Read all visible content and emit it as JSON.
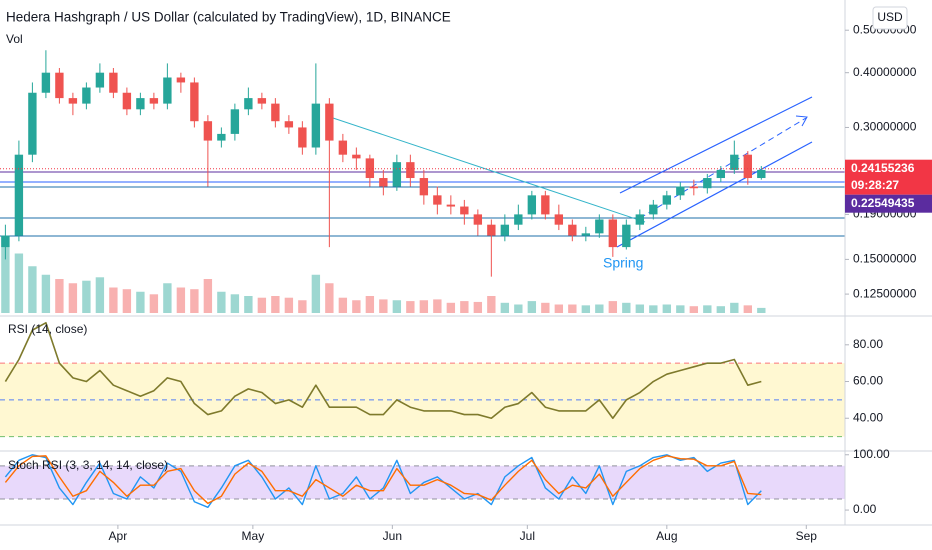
{
  "chart_data": [
    {
      "type": "candlestick",
      "title": "Hedera Hashgraph / US Dollar (calculated by TradingView), 1D, BINANCE",
      "subtitle": "Vol",
      "currency": "USD",
      "annotation": "Spring",
      "log_scale": true,
      "grid": false,
      "up_color": "#26a69a",
      "down_color": "#ef5350",
      "x": [
        -25,
        -22,
        -19,
        -16,
        -13,
        -10,
        -7,
        -4,
        -1,
        2,
        5,
        8,
        11,
        14,
        17,
        20,
        23,
        26,
        29,
        32,
        35,
        38,
        41,
        44,
        47,
        50,
        53,
        56,
        59,
        62,
        65,
        68,
        71,
        74,
        77,
        80,
        83,
        86,
        89,
        92,
        95,
        98,
        101,
        104,
        107,
        110,
        113,
        116,
        119,
        122,
        125,
        128,
        131,
        134,
        137,
        140,
        143
      ],
      "xlim": [
        -26.2,
        161.6
      ],
      "ylim": [
        0.112,
        0.586
      ],
      "yticks": [
        {
          "value": 0.5,
          "label": "0.50000000"
        },
        {
          "value": 0.4,
          "label": "0.40000000"
        },
        {
          "value": 0.3,
          "label": "0.30000000"
        },
        {
          "value": 0.19,
          "label": "0.19000000"
        },
        {
          "value": 0.15,
          "label": "0.15000000"
        },
        {
          "value": 0.125,
          "label": "0.12500000"
        }
      ],
      "open": [
        0.16,
        0.17,
        0.26,
        0.36,
        0.4,
        0.35,
        0.34,
        0.37,
        0.4,
        0.36,
        0.33,
        0.35,
        0.34,
        0.39,
        0.38,
        0.31,
        0.28,
        0.29,
        0.33,
        0.35,
        0.34,
        0.31,
        0.3,
        0.27,
        0.34,
        0.28,
        0.26,
        0.255,
        0.23,
        0.22,
        0.25,
        0.23,
        0.21,
        0.2,
        0.198,
        0.19,
        0.18,
        0.17,
        0.18,
        0.19,
        0.21,
        0.19,
        0.18,
        0.17,
        0.172,
        0.185,
        0.16,
        0.18,
        0.19,
        0.2,
        0.21,
        0.22,
        0.218,
        0.23,
        0.24,
        0.26,
        0.23
      ],
      "high": [
        0.18,
        0.28,
        0.38,
        0.45,
        0.41,
        0.36,
        0.38,
        0.42,
        0.41,
        0.37,
        0.36,
        0.36,
        0.42,
        0.4,
        0.39,
        0.32,
        0.3,
        0.34,
        0.37,
        0.36,
        0.35,
        0.32,
        0.31,
        0.42,
        0.35,
        0.29,
        0.27,
        0.26,
        0.24,
        0.26,
        0.26,
        0.24,
        0.22,
        0.21,
        0.205,
        0.195,
        0.185,
        0.19,
        0.2,
        0.215,
        0.215,
        0.2,
        0.185,
        0.178,
        0.19,
        0.19,
        0.185,
        0.195,
        0.205,
        0.215,
        0.225,
        0.228,
        0.235,
        0.245,
        0.28,
        0.265,
        0.245
      ],
      "low": [
        0.15,
        0.165,
        0.25,
        0.35,
        0.34,
        0.32,
        0.33,
        0.36,
        0.35,
        0.32,
        0.32,
        0.33,
        0.33,
        0.36,
        0.3,
        0.22,
        0.27,
        0.28,
        0.32,
        0.33,
        0.3,
        0.29,
        0.26,
        0.26,
        0.16,
        0.25,
        0.24,
        0.22,
        0.21,
        0.215,
        0.22,
        0.2,
        0.19,
        0.19,
        0.18,
        0.17,
        0.137,
        0.165,
        0.175,
        0.185,
        0.185,
        0.175,
        0.165,
        0.165,
        0.168,
        0.152,
        0.158,
        0.175,
        0.185,
        0.195,
        0.205,
        0.21,
        0.212,
        0.225,
        0.235,
        0.222,
        0.228
      ],
      "close": [
        0.17,
        0.26,
        0.36,
        0.4,
        0.35,
        0.34,
        0.37,
        0.4,
        0.36,
        0.33,
        0.35,
        0.34,
        0.39,
        0.38,
        0.31,
        0.28,
        0.29,
        0.33,
        0.35,
        0.34,
        0.31,
        0.3,
        0.27,
        0.34,
        0.28,
        0.26,
        0.255,
        0.23,
        0.22,
        0.25,
        0.23,
        0.21,
        0.2,
        0.198,
        0.19,
        0.18,
        0.17,
        0.18,
        0.19,
        0.21,
        0.19,
        0.18,
        0.17,
        0.172,
        0.185,
        0.16,
        0.18,
        0.19,
        0.2,
        0.21,
        0.22,
        0.218,
        0.23,
        0.24,
        0.26,
        0.23,
        0.24
      ],
      "volume": [
        90,
        70,
        55,
        45,
        40,
        35,
        38,
        42,
        30,
        28,
        25,
        22,
        35,
        30,
        28,
        40,
        25,
        22,
        20,
        18,
        20,
        18,
        15,
        45,
        35,
        18,
        15,
        20,
        16,
        15,
        14,
        15,
        16,
        12,
        14,
        13,
        20,
        12,
        10,
        14,
        12,
        10,
        10,
        9,
        10,
        14,
        12,
        10,
        9,
        10,
        9,
        8,
        9,
        8,
        12,
        9,
        6
      ],
      "y2lim": [
        0,
        100
      ],
      "last_price": 0.24155236,
      "last_price_color": "#f23645",
      "countdown": "09:28:27",
      "level_price": 0.22549435,
      "level_price_color": "#5b2c9f"
    },
    {
      "type": "line",
      "title": "RSI (14, close)",
      "color": "#7e7a2c",
      "x": [
        -25,
        -22,
        -19,
        -16,
        -13,
        -10,
        -7,
        -4,
        -1,
        2,
        5,
        8,
        11,
        14,
        17,
        20,
        23,
        26,
        29,
        32,
        35,
        38,
        41,
        44,
        47,
        50,
        53,
        56,
        59,
        62,
        65,
        68,
        71,
        74,
        77,
        80,
        83,
        86,
        89,
        92,
        95,
        98,
        101,
        104,
        107,
        110,
        113,
        116,
        119,
        122,
        125,
        128,
        131,
        134,
        137,
        140,
        143
      ],
      "values": [
        60,
        72,
        88,
        92,
        70,
        62,
        60,
        66,
        58,
        55,
        52,
        55,
        62,
        60,
        48,
        42,
        44,
        52,
        56,
        54,
        48,
        50,
        46,
        58,
        46,
        46,
        46,
        42,
        42,
        50,
        46,
        44,
        44,
        44,
        42,
        42,
        40,
        46,
        48,
        54,
        46,
        44,
        44,
        44,
        50,
        40,
        50,
        54,
        60,
        64,
        66,
        68,
        70,
        70,
        72,
        58,
        60
      ],
      "xlim": [
        -26.2,
        161.6
      ],
      "ylim": [
        22.7,
        94.6
      ],
      "yticks": [
        {
          "value": 80,
          "label": "80.00"
        },
        {
          "value": 60,
          "label": "60.00"
        },
        {
          "value": 40,
          "label": "40.00"
        }
      ],
      "band": [
        30,
        70
      ],
      "band_color": "#fff8d2",
      "levels": [
        70,
        50,
        30
      ],
      "level_colors": [
        "#f7525f",
        "#2962ff",
        "#4caf50"
      ]
    },
    {
      "type": "line",
      "title": "Stoch RSI (3, 3, 14, 14, close)",
      "x": [
        -25,
        -22,
        -19,
        -16,
        -13,
        -10,
        -7,
        -4,
        -1,
        2,
        5,
        8,
        11,
        14,
        17,
        20,
        23,
        26,
        29,
        32,
        35,
        38,
        41,
        44,
        47,
        50,
        53,
        56,
        59,
        62,
        65,
        68,
        71,
        74,
        77,
        80,
        83,
        86,
        89,
        92,
        95,
        98,
        101,
        104,
        107,
        110,
        113,
        116,
        119,
        122,
        125,
        128,
        131,
        134,
        137,
        140,
        143
      ],
      "series": [
        {
          "color": "#2196f3",
          "values": [
            60,
            90,
            100,
            95,
            40,
            10,
            50,
            85,
            30,
            20,
            60,
            40,
            85,
            70,
            15,
            5,
            40,
            80,
            90,
            60,
            20,
            40,
            10,
            80,
            20,
            30,
            60,
            20,
            40,
            90,
            30,
            50,
            60,
            40,
            20,
            30,
            10,
            60,
            80,
            95,
            40,
            20,
            60,
            30,
            80,
            10,
            70,
            80,
            95,
            100,
            90,
            95,
            70,
            85,
            90,
            10,
            35
          ]
        },
        {
          "color": "#ff6d00",
          "values": [
            50,
            80,
            97,
            98,
            60,
            25,
            35,
            70,
            50,
            25,
            45,
            45,
            70,
            75,
            35,
            12,
            25,
            65,
            85,
            70,
            35,
            35,
            25,
            55,
            40,
            25,
            45,
            35,
            35,
            75,
            45,
            45,
            55,
            45,
            30,
            28,
            18,
            45,
            70,
            90,
            55,
            30,
            45,
            40,
            65,
            25,
            50,
            75,
            90,
            98,
            93,
            92,
            80,
            80,
            88,
            30,
            28
          ]
        }
      ],
      "xlim": [
        -26.2,
        161.6
      ],
      "ylim": [
        -27,
        105
      ],
      "yticks": [
        {
          "value": 100,
          "label": "100.00"
        },
        {
          "value": 0,
          "label": "0.00"
        }
      ],
      "xticks": [
        {
          "value": 0,
          "label": "Apr"
        },
        {
          "value": 30,
          "label": "May"
        },
        {
          "value": 61,
          "label": "Jun"
        },
        {
          "value": 91,
          "label": "Jul"
        },
        {
          "value": 122,
          "label": "Aug"
        },
        {
          "value": 153,
          "label": "Sep"
        }
      ],
      "band": [
        20,
        80
      ],
      "band_color": "#e8d9fb",
      "levels": [
        80,
        20
      ],
      "level_colors": [
        "#787b86",
        "#787b86"
      ]
    }
  ]
}
